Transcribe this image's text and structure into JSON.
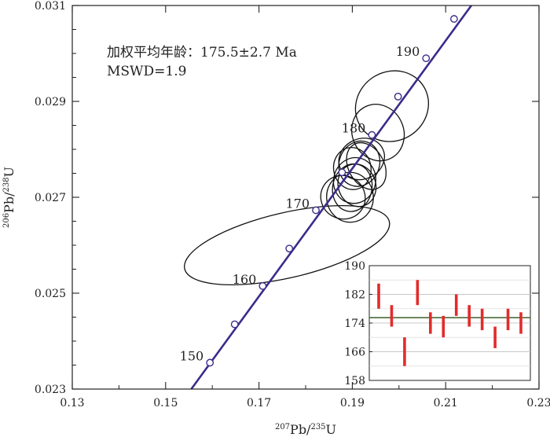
{
  "chart_data": [
    {
      "type": "concordia",
      "title": "",
      "xlabel": {
        "sup1": "207",
        "main1": "Pb/",
        "sup2": "235",
        "main2": "U"
      },
      "ylabel": {
        "sup1": "206",
        "main1": "Pb/",
        "sup2": "238",
        "main2": "U"
      },
      "xlim": [
        0.13,
        0.23
      ],
      "ylim": [
        0.023,
        0.031
      ],
      "xticks": [
        0.13,
        0.15,
        0.17,
        0.19,
        0.21,
        0.23
      ],
      "xtick_labels": [
        "0.13",
        "0.15",
        "0.17",
        "0.19",
        "0.21",
        "0.23"
      ],
      "yticks": [
        0.023,
        0.025,
        0.027,
        0.029,
        0.031
      ],
      "ytick_labels": [
        "0.023",
        "0.025",
        "0.027",
        "0.029",
        "0.031"
      ],
      "annotation_line1": "加权平均年龄：175.5±2.7 Ma",
      "annotation_line2": "MSWD=1.9",
      "concordia_curve": {
        "x": [
          0.1555,
          0.2155
        ],
        "y": [
          0.023,
          0.031
        ]
      },
      "age_markers": [
        {
          "age": 150,
          "x": 0.1595,
          "y": 0.02355,
          "label": "150"
        },
        {
          "age": 155,
          "x": 0.1648,
          "y": 0.02435,
          "label": ""
        },
        {
          "age": 160,
          "x": 0.1708,
          "y": 0.02515,
          "label": "160"
        },
        {
          "age": 165,
          "x": 0.1765,
          "y": 0.02593,
          "label": ""
        },
        {
          "age": 170,
          "x": 0.1822,
          "y": 0.02673,
          "label": "170"
        },
        {
          "age": 175,
          "x": 0.1878,
          "y": 0.02752,
          "label": ""
        },
        {
          "age": 180,
          "x": 0.1942,
          "y": 0.0283,
          "label": "180"
        },
        {
          "age": 185,
          "x": 0.1998,
          "y": 0.0291,
          "label": ""
        },
        {
          "age": 190,
          "x": 0.2058,
          "y": 0.0299,
          "label": "190"
        },
        {
          "age": 195,
          "x": 0.2118,
          "y": 0.03072,
          "label": ""
        }
      ],
      "error_ellipses": [
        {
          "cx": 0.176,
          "cy": 0.026,
          "rx": 0.0225,
          "ry": 0.00068,
          "angle": -13
        },
        {
          "cx": 0.1985,
          "cy": 0.0289,
          "rx": 0.008,
          "ry": 0.00072,
          "angle": -33
        },
        {
          "cx": 0.1955,
          "cy": 0.02835,
          "rx": 0.0055,
          "ry": 0.0006,
          "angle": -25
        },
        {
          "cx": 0.192,
          "cy": 0.0278,
          "rx": 0.005,
          "ry": 0.00042,
          "angle": -25
        },
        {
          "cx": 0.1915,
          "cy": 0.0277,
          "rx": 0.0043,
          "ry": 0.00048,
          "angle": 22
        },
        {
          "cx": 0.193,
          "cy": 0.02765,
          "rx": 0.0038,
          "ry": 0.00052,
          "angle": -30
        },
        {
          "cx": 0.19,
          "cy": 0.0276,
          "rx": 0.004,
          "ry": 0.00044,
          "angle": -10
        },
        {
          "cx": 0.1905,
          "cy": 0.02735,
          "rx": 0.0045,
          "ry": 0.00048,
          "angle": 15
        },
        {
          "cx": 0.191,
          "cy": 0.02725,
          "rx": 0.004,
          "ry": 0.00045,
          "angle": -20
        },
        {
          "cx": 0.19,
          "cy": 0.0272,
          "rx": 0.0042,
          "ry": 0.0005,
          "angle": 12
        },
        {
          "cx": 0.1895,
          "cy": 0.027,
          "rx": 0.005,
          "ry": 0.00052,
          "angle": -5
        },
        {
          "cx": 0.188,
          "cy": 0.027,
          "rx": 0.0048,
          "ry": 0.00045,
          "angle": 28
        }
      ],
      "colors": {
        "curve": "#3b2b8a",
        "ellipse": "#111111",
        "axis": "#222222",
        "marker_fill": "#ffffff"
      }
    },
    {
      "type": "weighted_mean_bars",
      "ylim": [
        158,
        190
      ],
      "yticks": [
        158,
        166,
        174,
        182,
        190
      ],
      "ytick_labels": [
        "158",
        "166",
        "174",
        "182",
        "190"
      ],
      "mean": 175.5,
      "bars": [
        {
          "low": 178,
          "high": 185
        },
        {
          "low": 173,
          "high": 179
        },
        {
          "low": 162,
          "high": 170
        },
        {
          "low": 179,
          "high": 186
        },
        {
          "low": 171,
          "high": 177
        },
        {
          "low": 170,
          "high": 176
        },
        {
          "low": 176,
          "high": 182
        },
        {
          "low": 173,
          "high": 179
        },
        {
          "low": 172,
          "high": 178
        },
        {
          "low": 167,
          "high": 173
        },
        {
          "low": 172,
          "high": 178
        },
        {
          "low": 171,
          "high": 177
        }
      ],
      "colors": {
        "bar": "#e32b2b",
        "mean_line": "#4a6b3a",
        "grid": "#c8c8c8"
      }
    }
  ]
}
